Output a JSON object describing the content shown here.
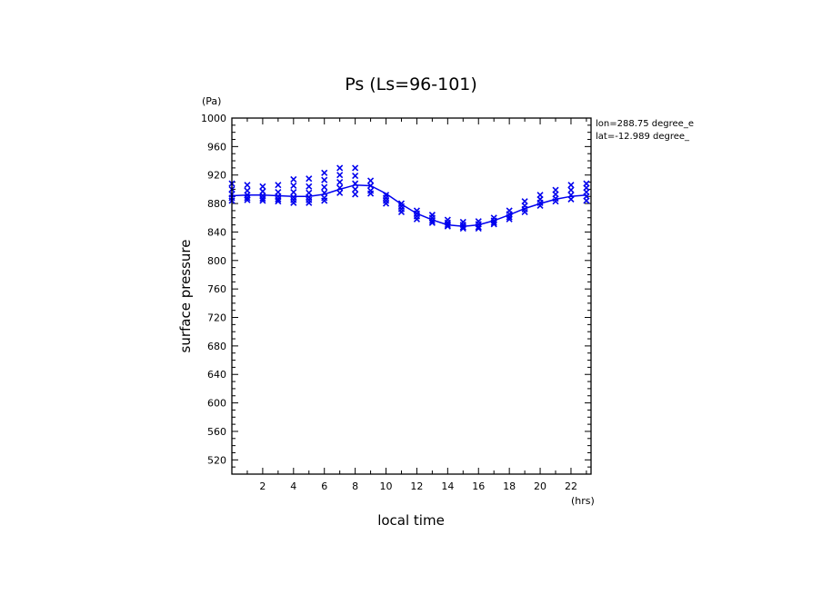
{
  "chart_data": {
    "type": "scatter",
    "title": "Ps (Ls=96-101)",
    "xlabel": "local time",
    "ylabel": "surface pressure",
    "x_unit": "(hrs)",
    "y_unit": "(Pa)",
    "xlim": [
      0,
      23.3
    ],
    "ylim": [
      500,
      1000
    ],
    "x_ticks": [
      2,
      4,
      6,
      8,
      10,
      12,
      14,
      16,
      18,
      20,
      22
    ],
    "y_ticks": [
      520,
      560,
      600,
      640,
      680,
      720,
      760,
      800,
      840,
      880,
      920,
      960,
      1000
    ],
    "annotations": [
      "lon=288.75 degree_e",
      "lat=-12.989 degree_"
    ],
    "colors": {
      "series": "#0000ee",
      "axes": "#000000"
    },
    "series": [
      {
        "type": "line",
        "x": [
          0,
          1,
          2,
          3,
          4,
          5,
          6,
          7,
          8,
          9,
          10,
          11,
          12,
          13,
          14,
          15,
          16,
          17,
          18,
          19,
          20,
          21,
          22,
          23
        ],
        "values": [
          891,
          892,
          892,
          891,
          890,
          890,
          893,
          900,
          906,
          905,
          894,
          879,
          866,
          857,
          850,
          848,
          850,
          856,
          864,
          873,
          880,
          886,
          890,
          892
        ]
      },
      {
        "type": "scatter",
        "x": [
          0,
          0,
          0,
          0,
          0,
          1,
          1,
          1,
          1,
          1,
          2,
          2,
          2,
          2,
          2,
          3,
          3,
          3,
          3,
          3,
          4,
          4,
          4,
          4,
          4,
          4,
          5,
          5,
          5,
          5,
          5,
          5,
          6,
          6,
          6,
          6,
          6,
          6,
          7,
          7,
          7,
          7,
          7,
          8,
          8,
          8,
          8,
          8,
          9,
          9,
          9,
          9,
          10,
          10,
          10,
          10,
          11,
          11,
          11,
          11,
          12,
          12,
          12,
          12,
          13,
          13,
          13,
          13,
          14,
          14,
          14,
          14,
          15,
          15,
          15,
          15,
          16,
          16,
          16,
          16,
          17,
          17,
          17,
          17,
          18,
          18,
          18,
          18,
          19,
          19,
          19,
          19,
          20,
          20,
          20,
          20,
          21,
          21,
          21,
          21,
          22,
          22,
          22,
          22,
          23,
          23,
          23,
          23,
          23
        ],
        "values": [
          908,
          900,
          893,
          888,
          884,
          906,
          898,
          892,
          888,
          885,
          904,
          897,
          891,
          887,
          884,
          906,
          896,
          890,
          886,
          883,
          914,
          905,
          896,
          889,
          885,
          881,
          915,
          904,
          895,
          889,
          885,
          881,
          923,
          913,
          903,
          895,
          888,
          884,
          930,
          920,
          910,
          902,
          895,
          930,
          919,
          908,
          900,
          893,
          912,
          905,
          898,
          894,
          892,
          888,
          884,
          880,
          880,
          876,
          872,
          868,
          870,
          866,
          862,
          858,
          864,
          860,
          856,
          853,
          857,
          853,
          850,
          848,
          854,
          850,
          847,
          845,
          855,
          851,
          847,
          845,
          860,
          856,
          853,
          851,
          870,
          865,
          861,
          858,
          883,
          877,
          872,
          868,
          892,
          886,
          881,
          877,
          899,
          893,
          887,
          883,
          906,
          899,
          892,
          886,
          908,
          902,
          896,
          890,
          884
        ]
      }
    ]
  }
}
